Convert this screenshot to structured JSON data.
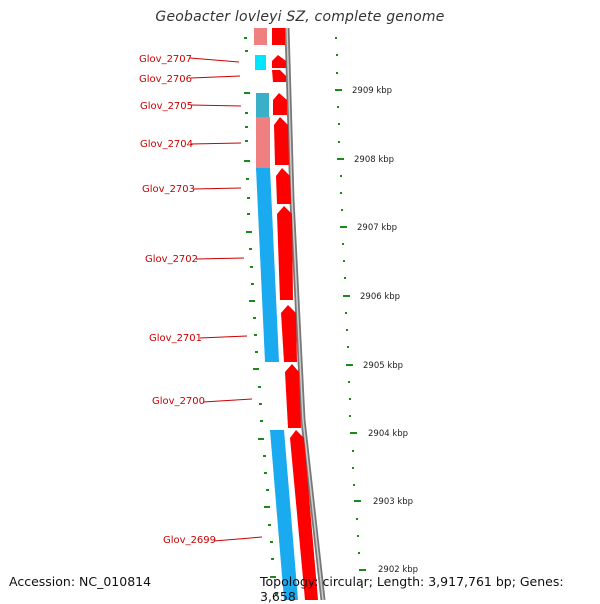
{
  "title": "Geobacter lovleyi SZ, complete genome",
  "footer": {
    "accession": "Accession: NC_010814",
    "summary": "Topology: circular; Length: 3,917,761 bp; Genes: 3,658"
  },
  "colors": {
    "label_red": "#cc0000",
    "gene_cds": "#ff0000",
    "cog_cyan": "#1aaaf0",
    "cog_pink": "#f08080",
    "cog_aqua": "#00ffff",
    "backbone_gray": "#888888",
    "tick_green": "#1a8a1a"
  },
  "gene_labels": [
    {
      "name": "Glov_2707"
    },
    {
      "name": "Glov_2706"
    },
    {
      "name": "Glov_2705"
    },
    {
      "name": "Glov_2704"
    },
    {
      "name": "Glov_2703"
    },
    {
      "name": "Glov_2702"
    },
    {
      "name": "Glov_2701"
    },
    {
      "name": "Glov_2700"
    },
    {
      "name": "Glov_2699"
    }
  ],
  "scale_labels": [
    "2909 kbp",
    "2908 kbp",
    "2907 kbp",
    "2906 kbp",
    "2905 kbp",
    "2904 kbp",
    "2903 kbp",
    "2902 kbp"
  ]
}
